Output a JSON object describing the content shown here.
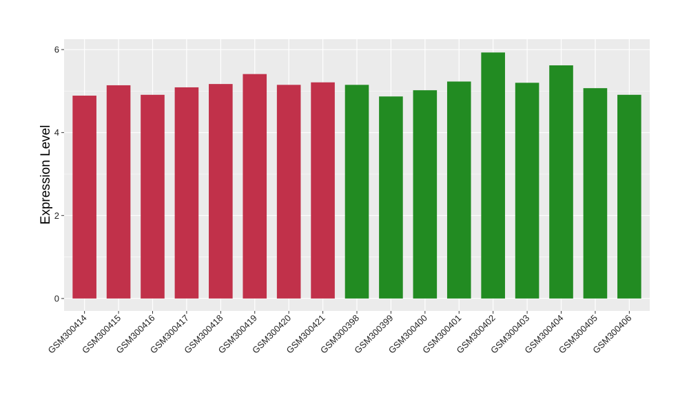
{
  "chart_data": {
    "type": "bar",
    "title": "",
    "xlabel": "",
    "ylabel": "Expression Level",
    "ylim": [
      -0.3,
      6.25
    ],
    "yticks": [
      0,
      2,
      4,
      6
    ],
    "grid": true,
    "legend": "none",
    "categories": [
      "GSM300414",
      "GSM300415",
      "GSM300416",
      "GSM300417",
      "GSM300418",
      "GSM300419",
      "GSM300420",
      "GSM300421",
      "GSM300398",
      "GSM300399",
      "GSM300400",
      "GSM300401",
      "GSM300402",
      "GSM300403",
      "GSM300404",
      "GSM300405",
      "GSM300406"
    ],
    "values": [
      4.89,
      5.14,
      4.91,
      5.09,
      5.17,
      5.41,
      5.15,
      5.21,
      5.15,
      4.87,
      5.02,
      5.23,
      5.93,
      5.2,
      5.62,
      5.07,
      4.91
    ],
    "groups": [
      "a",
      "a",
      "a",
      "a",
      "a",
      "a",
      "a",
      "a",
      "b",
      "b",
      "b",
      "b",
      "b",
      "b",
      "b",
      "b",
      "b"
    ],
    "colors": {
      "a": "#c1314a",
      "b": "#228b22"
    },
    "panel_background": "#ebebeb",
    "grid_color": "#ffffff"
  }
}
